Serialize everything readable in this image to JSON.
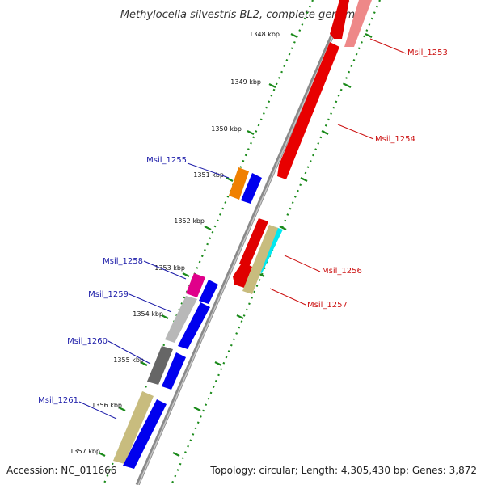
{
  "title": "Methylocella silvestris BL2, complete genome",
  "accession": "Accession: NC_011666",
  "topology": "Topology: circular; Length: 4,305,430 bp; Genes: 3,872",
  "colors": {
    "backbone": "#8a8a8a",
    "tick": "#1a8a1a",
    "forward_label": "#1a1aa8",
    "reverse_label": "#cc1111"
  },
  "kbp_labels": [
    "1348 kbp",
    "1349 kbp",
    "1350 kbp",
    "1351 kbp",
    "1352 kbp",
    "1353 kbp",
    "1354 kbp",
    "1355 kbp",
    "1356 kbp",
    "1357 kbp"
  ],
  "genes_forward": [
    {
      "label": "Msil_1255",
      "color": "#0000ee"
    },
    {
      "label": "Msil_1258",
      "color": "#0000ee"
    },
    {
      "label": "Msil_1259",
      "color": "#0000ee"
    },
    {
      "label": "Msil_1260",
      "color": "#0000ee"
    },
    {
      "label": "Msil_1261",
      "color": "#0000ee"
    }
  ],
  "genes_reverse": [
    {
      "label": "Msil_1253",
      "color": "#ee0000"
    },
    {
      "label": "Msil_1254",
      "color": "#ee0000"
    },
    {
      "label": "Msil_1256",
      "color": "#ee0000"
    },
    {
      "label": "Msil_1257",
      "color": "#ee0000"
    }
  ]
}
